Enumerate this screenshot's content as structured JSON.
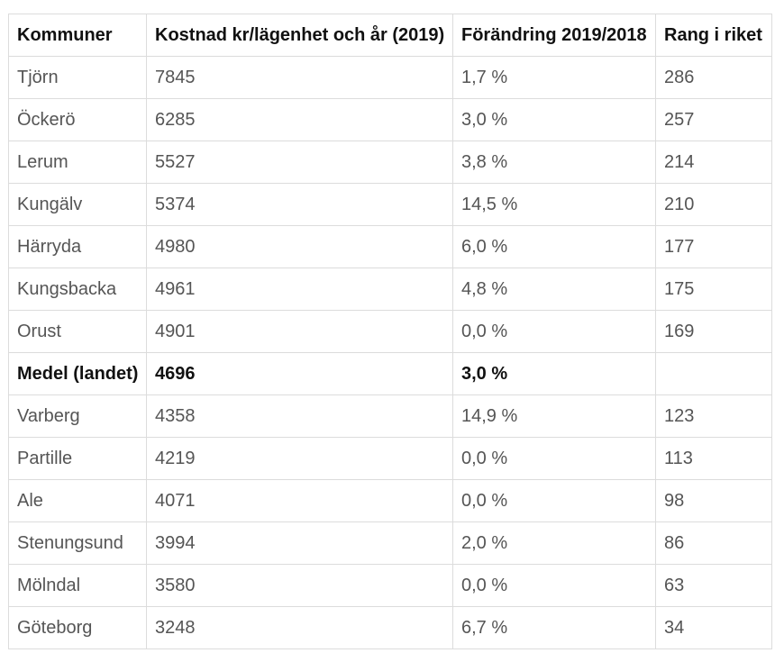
{
  "table": {
    "headers": [
      "Kommuner",
      "Kostnad kr/lägenhet och år (2019)",
      "Förändring 2019/2018",
      "Rang i riket"
    ],
    "rows": [
      {
        "kommun": "Tjörn",
        "kostnad": "7845",
        "forandring": "1,7 %",
        "rang": "286",
        "highlight": false
      },
      {
        "kommun": "Öckerö",
        "kostnad": "6285",
        "forandring": "3,0 %",
        "rang": "257",
        "highlight": false
      },
      {
        "kommun": "Lerum",
        "kostnad": "5527",
        "forandring": "3,8 %",
        "rang": "214",
        "highlight": false
      },
      {
        "kommun": "Kungälv",
        "kostnad": "5374",
        "forandring": "14,5 %",
        "rang": "210",
        "highlight": false
      },
      {
        "kommun": "Härryda",
        "kostnad": "4980",
        "forandring": "6,0 %",
        "rang": "177",
        "highlight": false
      },
      {
        "kommun": "Kungsbacka",
        "kostnad": "4961",
        "forandring": "4,8 %",
        "rang": "175",
        "highlight": false
      },
      {
        "kommun": "Orust",
        "kostnad": "4901",
        "forandring": "0,0 %",
        "rang": "169",
        "highlight": false
      },
      {
        "kommun": "Medel (landet)",
        "kostnad": "4696",
        "forandring": "3,0 %",
        "rang": "",
        "highlight": true
      },
      {
        "kommun": "Varberg",
        "kostnad": "4358",
        "forandring": "14,9 %",
        "rang": "123",
        "highlight": false
      },
      {
        "kommun": "Partille",
        "kostnad": "4219",
        "forandring": "0,0 %",
        "rang": "113",
        "highlight": false
      },
      {
        "kommun": "Ale",
        "kostnad": "4071",
        "forandring": "0,0 %",
        "rang": "98",
        "highlight": false
      },
      {
        "kommun": "Stenungsund",
        "kostnad": "3994",
        "forandring": "2,0 %",
        "rang": "86",
        "highlight": false
      },
      {
        "kommun": "Mölndal",
        "kostnad": "3580",
        "forandring": "0,0 %",
        "rang": "63",
        "highlight": false
      },
      {
        "kommun": "Göteborg",
        "kostnad": "3248",
        "forandring": "6,7 %",
        "rang": "34",
        "highlight": false
      }
    ]
  }
}
